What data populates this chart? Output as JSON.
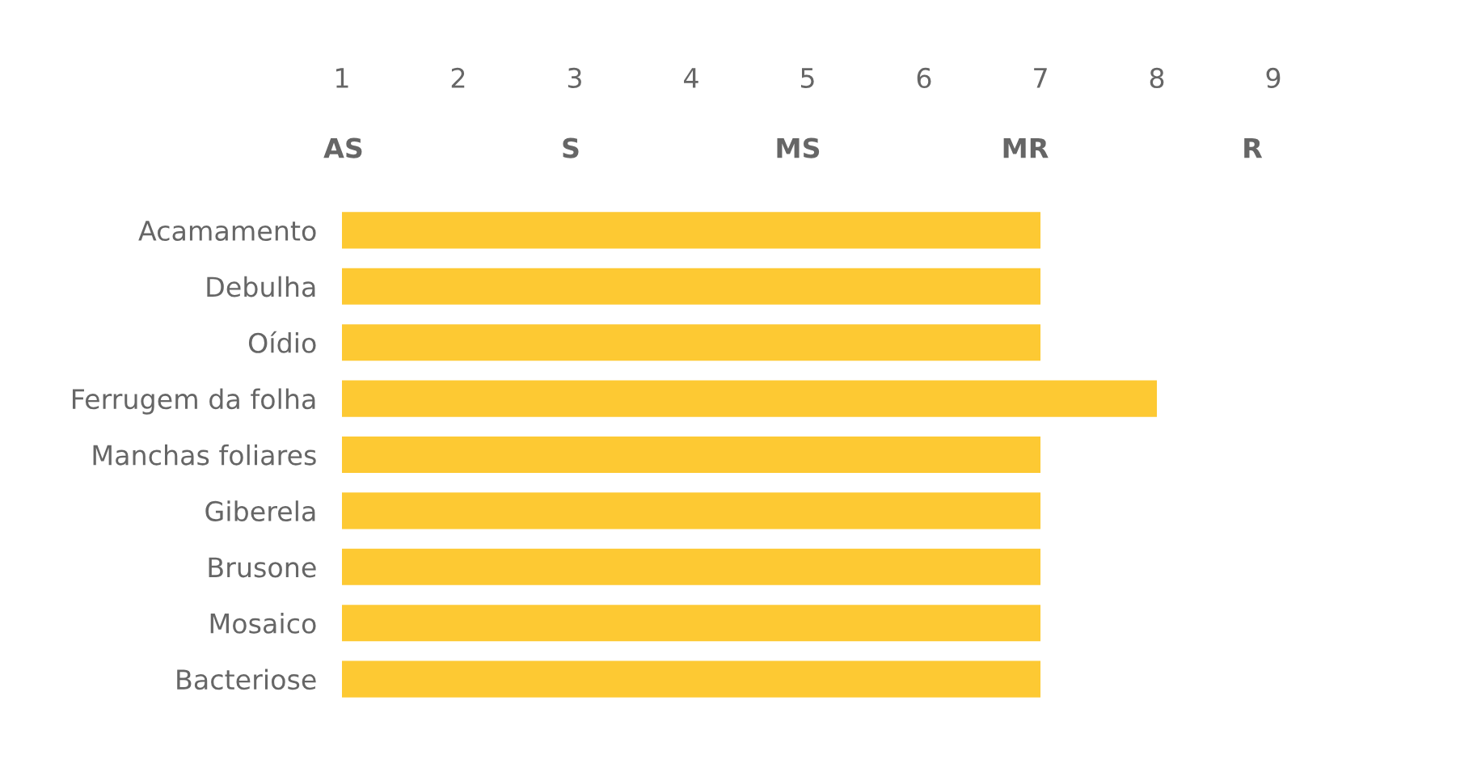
{
  "chart_data": {
    "type": "bar",
    "orientation": "horizontal",
    "categories": [
      "Acamamento",
      "Debulha",
      "Oídio",
      "Ferrugem da folha",
      "Manchas foliares",
      "Giberela",
      "Brusone",
      "Mosaico",
      "Bacteriose"
    ],
    "base": [
      1,
      1,
      1,
      1,
      1,
      1,
      1,
      1,
      1
    ],
    "values": [
      6,
      6,
      6,
      7,
      6,
      6,
      6,
      6,
      6
    ],
    "color": "#fdc933",
    "xlim": [
      1,
      9
    ],
    "xticks": [
      1,
      2,
      3,
      4,
      5,
      6,
      7,
      8,
      9
    ],
    "grid": false,
    "legend": false,
    "annotations": [
      "AS",
      "S",
      "MS",
      "MR",
      "R"
    ]
  }
}
